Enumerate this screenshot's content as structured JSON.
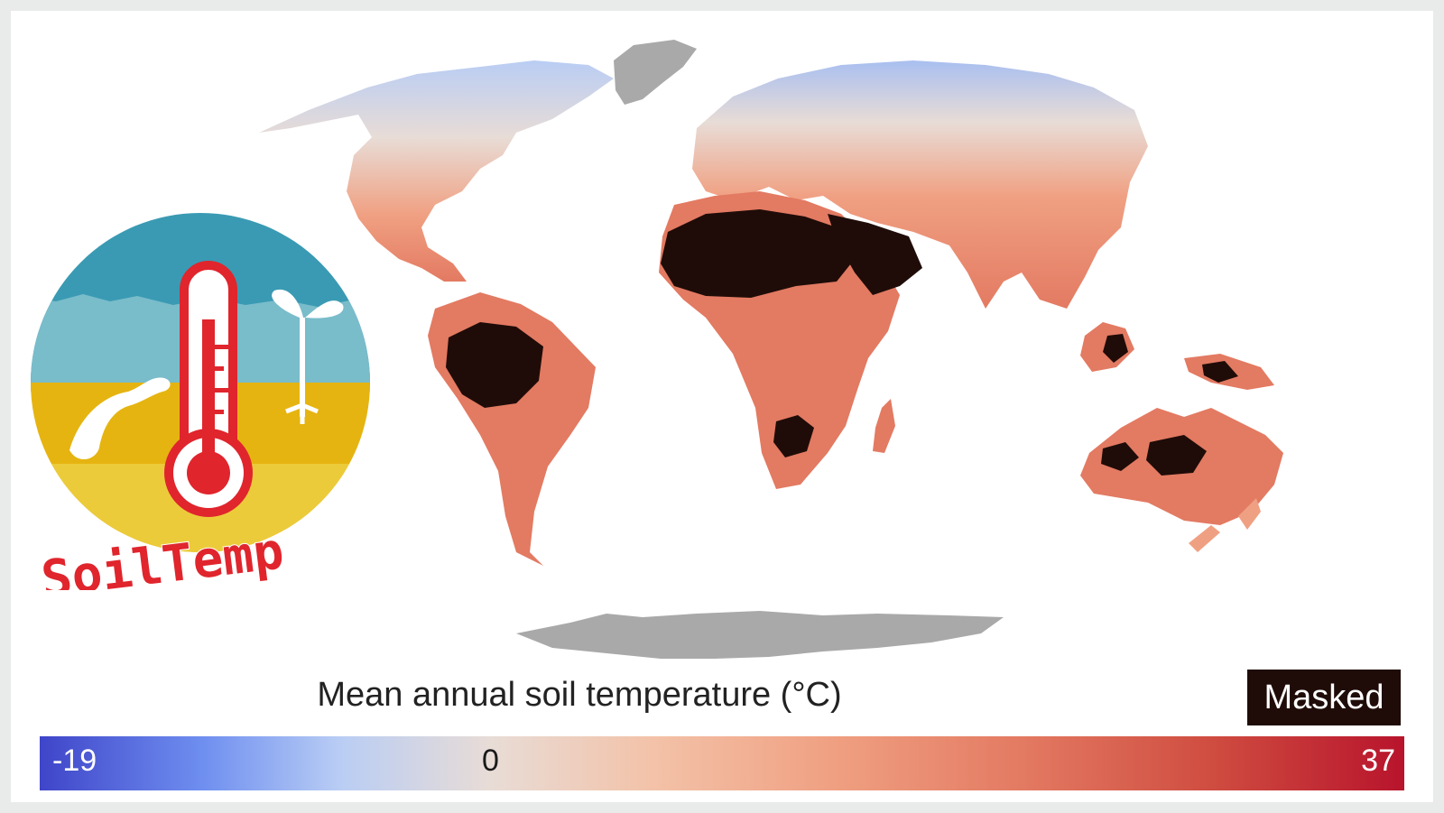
{
  "legend": {
    "title": "Mean annual soil temperature (°C)",
    "masked_label": "Masked",
    "colorbar": {
      "min_label": "-19",
      "zero_label": "0",
      "max_label": "37",
      "min": -19,
      "max": 37,
      "colors": [
        "#3f45c9",
        "#6f8ff0",
        "#b9cdf4",
        "#e8dcd6",
        "#f3c2a8",
        "#f0a082",
        "#e37a62",
        "#cf4c40",
        "#b8142c"
      ]
    }
  },
  "logo": {
    "text": "SoilTemp",
    "colors": {
      "sky": "#3a9ab3",
      "sky_light": "#79bcca",
      "soil": "#e6b410",
      "thermometer": "#e0252d"
    }
  },
  "map": {
    "masked_color": "#1f0c08",
    "no_data_color": "#a9a9a9"
  }
}
